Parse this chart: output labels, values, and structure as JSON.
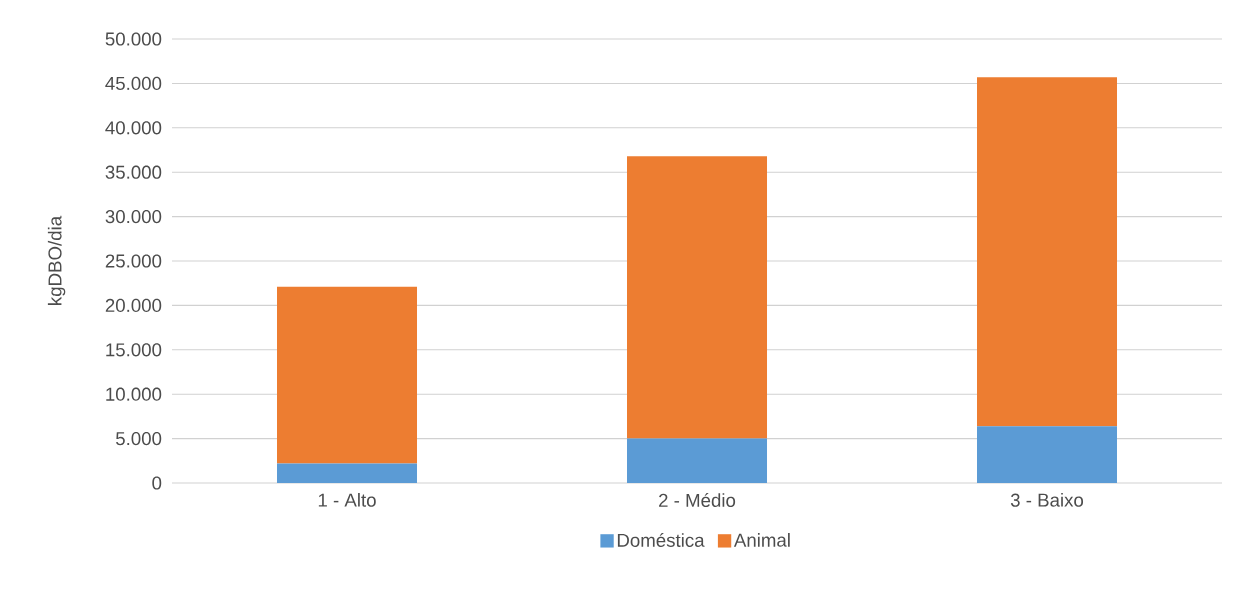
{
  "chart_data": {
    "type": "bar",
    "stacked": true,
    "ylabel": "kgDBO/dia",
    "categories": [
      "1 - Alto",
      "2 - Médio",
      "3 - Baixo"
    ],
    "series": [
      {
        "name": "Doméstica",
        "color": "#5b9bd5",
        "values": [
          2200,
          5000,
          6400
        ]
      },
      {
        "name": "Animal",
        "color": "#ed7d31",
        "values": [
          19900,
          31800,
          39300
        ]
      }
    ],
    "ylim": [
      0,
      50000
    ],
    "yticks": [
      0,
      {
        "value": 5000,
        "label": "5.000"
      },
      {
        "value": 10000,
        "label": "10.000"
      },
      {
        "value": 15000,
        "label": "15.000"
      },
      {
        "value": 20000,
        "label": "20.000"
      },
      {
        "value": 25000,
        "label": "25.000"
      },
      {
        "value": 30000,
        "label": "30.000"
      },
      {
        "value": 35000,
        "label": "35.000"
      },
      {
        "value": 40000,
        "label": "40.000"
      },
      {
        "value": 45000,
        "label": "45.000"
      },
      {
        "value": 50000,
        "label": "50.000"
      }
    ],
    "grid": "y",
    "legend": "bottom"
  }
}
